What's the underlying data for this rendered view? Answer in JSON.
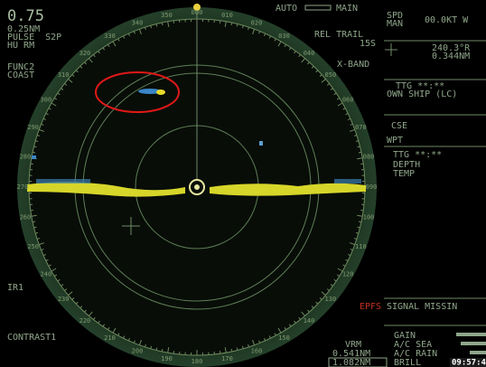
{
  "left_panel": {
    "range": "0.75",
    "ring_interval": "0.25NM",
    "pulse": "PULSE  S2P",
    "mode": "HU RM",
    "func": "FUNC2",
    "coast": "COAST",
    "ir": "IR1",
    "contrast": "CONTRAST1"
  },
  "top_bar": {
    "auto": "AUTO",
    "main": "MAIN",
    "trail": "REL TRAIL",
    "trail_time": "15S",
    "band": "X-BAND"
  },
  "bearing_scale": [
    "000",
    "010",
    "020",
    "030",
    "040",
    "050",
    "060",
    "070",
    "080",
    "090",
    "100",
    "110",
    "120",
    "130",
    "140",
    "150",
    "160",
    "170",
    "180",
    "190",
    "200",
    "210",
    "220",
    "230",
    "240",
    "250",
    "260",
    "270",
    "280",
    "290",
    "300",
    "310",
    "320",
    "330",
    "340",
    "350"
  ],
  "right_panel": {
    "spd": "SPD",
    "spd_mode": "MAN",
    "spd_value": "00.0KT W",
    "cursor_brg": "240.3°R",
    "cursor_rng": "0.344NM",
    "ttg1": "TTG **:**",
    "own_ship": "OWN SHIP (LC)",
    "cse": "CSE",
    "wpt": "WPT",
    "ttg2": "TTG **:**",
    "depth": "DEPTH",
    "temp": "TEMP",
    "epfs": "EPFS",
    "signal": "SIGNAL MISSIN",
    "gain": "GAIN",
    "sea": "A/C SEA",
    "rain": "A/C RAIN",
    "brill": "BRILL"
  },
  "bottom": {
    "vrm": "VRM",
    "vrm1": "0.541NM",
    "vrm2": "1.082NM",
    "clock": "09:57:4"
  }
}
